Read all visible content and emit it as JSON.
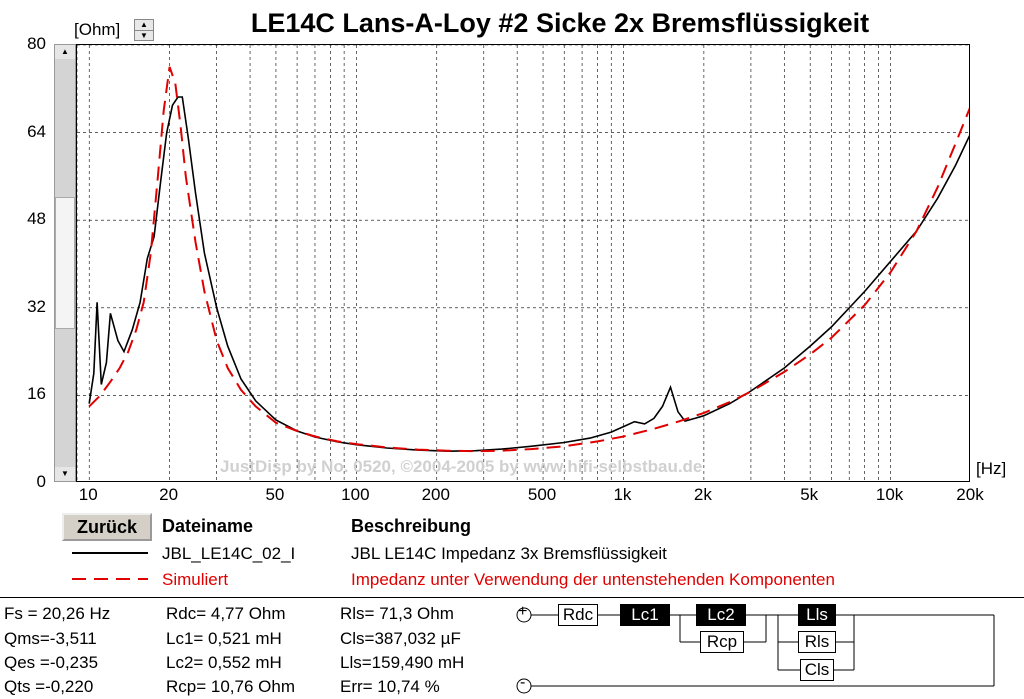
{
  "title": "LE14C Lans-A-Loy #2 Sicke 2x Bremsflüssigkeit",
  "y_unit": "[Ohm]",
  "x_unit": "[Hz]",
  "watermark": "JustDisp by No. 0520, ©2004-2005 by www.hifi-selbstbau.de",
  "back_button": "Zurück",
  "legend": {
    "col_file": "Dateiname",
    "col_desc": "Beschreibung",
    "rows": [
      {
        "file": "JBL_LE14C_02_I",
        "desc": "JBL LE14C Impedanz 3x Bremsflüssigkeit",
        "color": "#000000",
        "style": "solid"
      },
      {
        "file": "Simuliert",
        "desc": "Impedanz unter Verwendung der untenstehenden Komponenten",
        "color": "#e00000",
        "style": "dashed"
      }
    ]
  },
  "params": {
    "fs": "Fs  = 20,26 Hz",
    "qms": "Qms=-3,511",
    "qes": "Qes =-0,235",
    "qts": "Qts =-0,220",
    "rdc": "Rdc=   4,77 Ohm",
    "lc1": "Lc1= 0,521 mH",
    "lc2": "Lc2= 0,552 mH",
    "rcp": "Rcp= 10,76 Ohm",
    "rls": "Rls=   71,3 Ohm",
    "cls": "Cls=387,032 µF",
    "lls": "Lls=159,490 mH",
    "err": "Err=  10,74 %"
  },
  "circuit": {
    "plus": "+",
    "minus": "-",
    "rdc": "Rdc",
    "lc1": "Lc1",
    "lc2": "Lc2",
    "rcp": "Rcp",
    "lls": "Lls",
    "rls": "Rls",
    "cls": "Cls"
  },
  "chart_data": {
    "type": "line",
    "xscale": "log",
    "xlim": [
      9,
      20000
    ],
    "ylim": [
      0,
      80
    ],
    "grid": true,
    "xticks": [
      {
        "v": 10,
        "label": "10"
      },
      {
        "v": 20,
        "label": "20"
      },
      {
        "v": 50,
        "label": "50"
      },
      {
        "v": 100,
        "label": "100"
      },
      {
        "v": 200,
        "label": "200"
      },
      {
        "v": 500,
        "label": "500"
      },
      {
        "v": 1000,
        "label": "1k"
      },
      {
        "v": 2000,
        "label": "2k"
      },
      {
        "v": 5000,
        "label": "5k"
      },
      {
        "v": 10000,
        "label": "10k"
      },
      {
        "v": 20000,
        "label": "20k"
      }
    ],
    "yticks": [
      {
        "v": 0,
        "label": "0"
      },
      {
        "v": 16,
        "label": "16"
      },
      {
        "v": 32,
        "label": "32"
      },
      {
        "v": 48,
        "label": "48"
      },
      {
        "v": 64,
        "label": "64"
      },
      {
        "v": 80,
        "label": "80"
      }
    ],
    "series": [
      {
        "name": "JBL_LE14C_02_I",
        "color": "#000000",
        "dash": "",
        "points": [
          [
            10,
            14.5
          ],
          [
            10.4,
            20
          ],
          [
            10.7,
            33
          ],
          [
            11.1,
            18
          ],
          [
            11.6,
            22
          ],
          [
            12,
            31
          ],
          [
            12.8,
            26
          ],
          [
            13.5,
            24
          ],
          [
            14.5,
            28
          ],
          [
            15.5,
            33
          ],
          [
            16.5,
            41
          ],
          [
            17.5,
            45
          ],
          [
            18.5,
            55
          ],
          [
            19.5,
            64
          ],
          [
            20.5,
            69
          ],
          [
            21.5,
            70.5
          ],
          [
            22.3,
            70.5
          ],
          [
            23.5,
            63
          ],
          [
            25,
            53
          ],
          [
            27,
            42
          ],
          [
            30,
            32
          ],
          [
            33,
            25
          ],
          [
            37,
            19
          ],
          [
            42,
            15
          ],
          [
            50,
            11.5
          ],
          [
            60,
            9.5
          ],
          [
            70,
            8.4
          ],
          [
            85,
            7.5
          ],
          [
            100,
            7.0
          ],
          [
            130,
            6.4
          ],
          [
            170,
            6.0
          ],
          [
            220,
            5.8
          ],
          [
            280,
            5.9
          ],
          [
            350,
            6.2
          ],
          [
            450,
            6.7
          ],
          [
            600,
            7.4
          ],
          [
            750,
            8.2
          ],
          [
            900,
            9.3
          ],
          [
            1000,
            10.3
          ],
          [
            1100,
            11.2
          ],
          [
            1200,
            10.8
          ],
          [
            1300,
            11.8
          ],
          [
            1400,
            14
          ],
          [
            1500,
            17.5
          ],
          [
            1600,
            13
          ],
          [
            1700,
            11.3
          ],
          [
            1850,
            11.8
          ],
          [
            2000,
            12.3
          ],
          [
            2500,
            14.5
          ],
          [
            3000,
            16.8
          ],
          [
            4000,
            21
          ],
          [
            5000,
            25
          ],
          [
            6000,
            28.5
          ],
          [
            8000,
            35
          ],
          [
            10000,
            40.5
          ],
          [
            12500,
            46
          ],
          [
            15000,
            52
          ],
          [
            17500,
            58
          ],
          [
            20000,
            64
          ]
        ]
      },
      {
        "name": "Simuliert",
        "color": "#e00000",
        "dash": "14,8",
        "points": [
          [
            10,
            14
          ],
          [
            11,
            16
          ],
          [
            12,
            18.5
          ],
          [
            13,
            21
          ],
          [
            14,
            24
          ],
          [
            15,
            28
          ],
          [
            16,
            33
          ],
          [
            17,
            42
          ],
          [
            18,
            55
          ],
          [
            19,
            68
          ],
          [
            20,
            76
          ],
          [
            21,
            73
          ],
          [
            22,
            65
          ],
          [
            23,
            56
          ],
          [
            25,
            44
          ],
          [
            27,
            35
          ],
          [
            30,
            26
          ],
          [
            33,
            21
          ],
          [
            37,
            17
          ],
          [
            42,
            14
          ],
          [
            50,
            11
          ],
          [
            60,
            9.5
          ],
          [
            70,
            8.5
          ],
          [
            85,
            7.6
          ],
          [
            100,
            7.1
          ],
          [
            130,
            6.5
          ],
          [
            170,
            6.1
          ],
          [
            220,
            5.9
          ],
          [
            280,
            5.8
          ],
          [
            350,
            5.9
          ],
          [
            450,
            6.2
          ],
          [
            600,
            6.7
          ],
          [
            800,
            7.6
          ],
          [
            1000,
            8.5
          ],
          [
            1300,
            9.9
          ],
          [
            1600,
            11.2
          ],
          [
            2000,
            12.8
          ],
          [
            2500,
            14.8
          ],
          [
            3000,
            16.7
          ],
          [
            4000,
            20.3
          ],
          [
            5000,
            23.5
          ],
          [
            6000,
            26.5
          ],
          [
            8000,
            32.5
          ],
          [
            10000,
            38.5
          ],
          [
            12500,
            46
          ],
          [
            15000,
            54
          ],
          [
            17500,
            62
          ],
          [
            20000,
            69
          ]
        ]
      }
    ]
  }
}
